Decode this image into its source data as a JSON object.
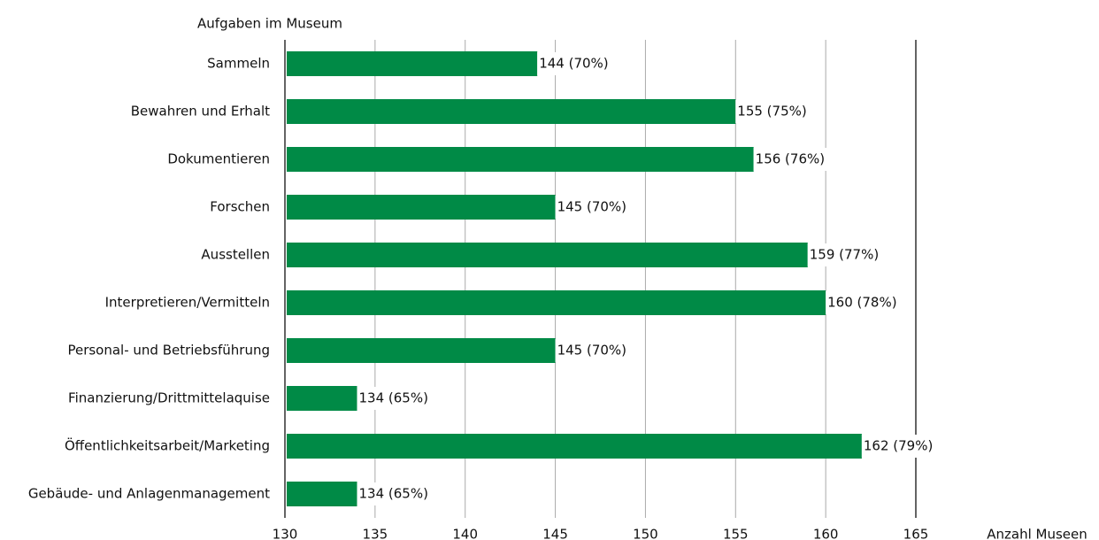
{
  "chart_data": {
    "type": "bar",
    "orientation": "horizontal",
    "title": "Aufgaben im Museum",
    "x_label": "Anzahl Museen",
    "categories": [
      "Sammeln",
      "Bewahren und Erhalt",
      "Dokumentieren",
      "Forschen",
      "Ausstellen",
      "Interpretieren/Vermitteln",
      "Personal- und Betriebsführung",
      "Finanzierung/Drittmittelaquise",
      "Öffentlichkeitsarbeit/Marketing",
      "Gebäude- und Anlagenmanagement"
    ],
    "values": [
      144,
      155,
      156,
      145,
      159,
      160,
      145,
      134,
      162,
      134
    ],
    "value_labels": [
      "144 (70%)",
      "155 (75%)",
      "156 (76%)",
      "145 (70%)",
      "159 (77%)",
      "160 (78%)",
      "145 (70%)",
      "134 (65%)",
      "162 (79%)",
      "134 (65%)"
    ],
    "color": "#008a46",
    "xlim": [
      130,
      165
    ],
    "xticks": [
      130,
      135,
      140,
      145,
      150,
      155,
      160,
      165
    ],
    "grid": true
  }
}
